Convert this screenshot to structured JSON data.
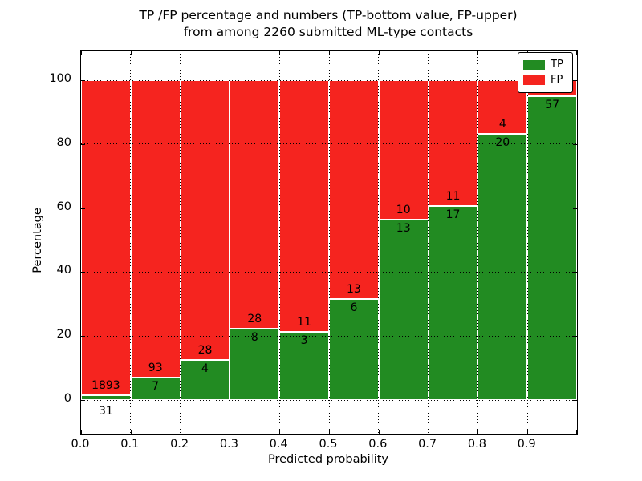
{
  "figure": {
    "title_line1": "TP /FP percentage and numbers (TP-bottom value, FP-upper)",
    "title_line2": "from among 2260 submitted ML-type contacts"
  },
  "axes": {
    "xlabel": "Predicted probability",
    "ylabel": "Percentage",
    "x_tick_labels": [
      "0.0",
      "0.1",
      "0.2",
      "0.3",
      "0.4",
      "0.5",
      "0.6",
      "0.7",
      "0.8",
      "0.9"
    ],
    "y_tick_labels": [
      "0",
      "20",
      "40",
      "60",
      "80",
      "100"
    ],
    "y_tick_values": [
      0,
      20,
      40,
      60,
      80,
      100
    ]
  },
  "legend": {
    "items": [
      {
        "label": "TP",
        "color": "#228b22"
      },
      {
        "label": "FP",
        "color": "#f5241f"
      }
    ]
  },
  "colors": {
    "tp": "#228b22",
    "fp": "#f5241f",
    "background": "#ffffff",
    "grid": "#000000"
  },
  "chart_data": {
    "type": "bar",
    "stacked": true,
    "normalized": "each bin stacks to 100 percent",
    "title": "TP /FP percentage and numbers (TP-bottom value, FP-upper) from among 2260 submitted ML-type contacts",
    "xlabel": "Predicted probability",
    "ylabel": "Percentage",
    "total_contacts": 2260,
    "bin_edges": [
      0.0,
      0.1,
      0.2,
      0.3,
      0.4,
      0.5,
      0.6,
      0.7,
      0.8,
      0.9,
      1.0
    ],
    "categories": [
      "0.0-0.1",
      "0.1-0.2",
      "0.2-0.3",
      "0.3-0.4",
      "0.4-0.5",
      "0.5-0.6",
      "0.6-0.7",
      "0.7-0.8",
      "0.8-0.9",
      "0.9-1.0"
    ],
    "series": [
      {
        "name": "TP",
        "color": "#228b22",
        "counts": [
          31,
          7,
          4,
          8,
          3,
          6,
          13,
          17,
          20,
          57
        ],
        "pct": [
          1.6,
          7.0,
          12.5,
          22.2,
          21.4,
          31.6,
          56.5,
          60.7,
          83.3,
          95.0
        ]
      },
      {
        "name": "FP",
        "color": "#f5241f",
        "counts": [
          1893,
          93,
          28,
          28,
          11,
          13,
          10,
          11,
          4,
          null
        ],
        "pct": [
          98.4,
          93.0,
          87.5,
          77.8,
          78.6,
          68.4,
          43.5,
          39.3,
          16.7,
          5.0
        ]
      }
    ],
    "bar_labels": {
      "tp": [
        "31",
        "7",
        "4",
        "8",
        "3",
        "6",
        "13",
        "17",
        "20",
        "57"
      ],
      "fp": [
        "1893",
        "93",
        "28",
        "28",
        "11",
        "13",
        "10",
        "11",
        "4",
        ""
      ]
    },
    "ylim": [
      -10,
      109
    ],
    "xlim": [
      0.0,
      1.0
    ],
    "grid": "dotted black, both axes, drawn over bars",
    "legend_position": "upper right"
  }
}
